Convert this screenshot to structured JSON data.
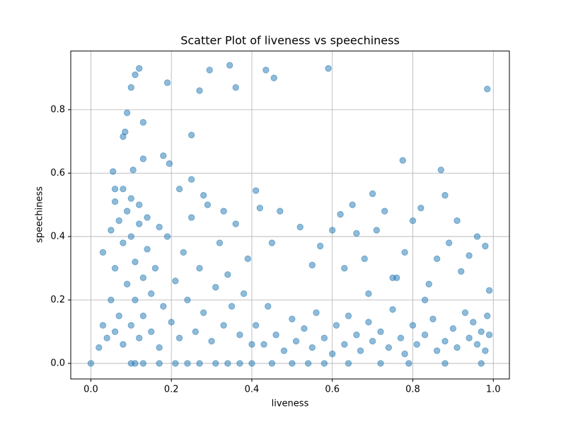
{
  "chart_data": {
    "type": "scatter",
    "title": "Scatter Plot of liveness vs speechiness",
    "x_label": "liveness",
    "y_label": "speechiness",
    "color": "#1f77b4",
    "grid": true,
    "xlim": [
      -0.05,
      1.04
    ],
    "ylim": [
      -0.049,
      0.985
    ],
    "xticks": [
      {
        "value": 0,
        "label": "0.0"
      },
      {
        "value": 0.2,
        "label": "0.2"
      },
      {
        "value": 0.4,
        "label": "0.4"
      },
      {
        "value": 0.6,
        "label": "0.6"
      },
      {
        "value": 0.8,
        "label": "0.8"
      },
      {
        "value": 1.0,
        "label": "1.0"
      }
    ],
    "yticks": [
      {
        "value": 0,
        "label": "0.0"
      },
      {
        "value": 0.2,
        "label": "0.2"
      },
      {
        "value": 0.4,
        "label": "0.4"
      },
      {
        "value": 0.6,
        "label": "0.6"
      },
      {
        "value": 0.8,
        "label": "0.8"
      }
    ],
    "x": [
      0.0,
      0.1,
      0.11,
      0.12,
      0.09,
      0.13,
      0.08,
      0.085,
      0.19,
      0.27,
      0.295,
      0.345,
      0.36,
      0.435,
      0.455,
      0.59,
      0.985,
      0.25,
      0.18,
      0.13,
      0.195,
      0.055,
      0.105,
      0.775,
      0.87,
      0.88,
      0.7,
      0.41,
      0.06,
      0.1,
      0.11,
      0.13,
      0.17,
      0.21,
      0.24,
      0.27,
      0.31,
      0.34,
      0.37,
      0.4,
      0.45,
      0.5,
      0.54,
      0.58,
      0.64,
      0.72,
      0.79,
      0.88,
      0.97,
      0.42,
      0.47,
      0.52,
      0.55,
      0.6,
      0.62,
      0.65,
      0.66,
      0.68,
      0.71,
      0.73,
      0.76,
      0.78,
      0.8,
      0.82,
      0.84,
      0.86,
      0.89,
      0.91,
      0.94,
      0.96,
      0.98,
      0.99,
      0.45,
      0.57,
      0.63,
      0.69,
      0.75,
      0.83,
      0.92,
      0.41,
      0.43,
      0.44,
      0.46,
      0.48,
      0.5,
      0.51,
      0.53,
      0.55,
      0.56,
      0.58,
      0.6,
      0.61,
      0.63,
      0.64,
      0.66,
      0.67,
      0.69,
      0.7,
      0.72,
      0.74,
      0.75,
      0.77,
      0.78,
      0.8,
      0.81,
      0.83,
      0.85,
      0.86,
      0.88,
      0.9,
      0.91,
      0.93,
      0.94,
      0.95,
      0.96,
      0.97,
      0.98,
      0.99,
      0.985,
      0.02,
      0.03,
      0.03,
      0.04,
      0.05,
      0.05,
      0.06,
      0.06,
      0.07,
      0.07,
      0.08,
      0.08,
      0.09,
      0.09,
      0.1,
      0.1,
      0.11,
      0.11,
      0.12,
      0.12,
      0.13,
      0.13,
      0.14,
      0.15,
      0.15,
      0.16,
      0.17,
      0.18,
      0.19,
      0.2,
      0.21,
      0.22,
      0.23,
      0.24,
      0.25,
      0.26,
      0.27,
      0.28,
      0.29,
      0.3,
      0.31,
      0.32,
      0.33,
      0.34,
      0.35,
      0.36,
      0.37,
      0.38,
      0.39,
      0.4,
      0.08,
      0.1,
      0.12,
      0.14,
      0.22,
      0.28,
      0.33,
      0.06,
      0.17,
      0.25
    ],
    "y": [
      0.0,
      0.87,
      0.91,
      0.93,
      0.79,
      0.76,
      0.715,
      0.73,
      0.885,
      0.86,
      0.925,
      0.94,
      0.87,
      0.925,
      0.9,
      0.93,
      0.865,
      0.72,
      0.655,
      0.645,
      0.63,
      0.605,
      0.61,
      0.64,
      0.61,
      0.53,
      0.535,
      0.545,
      0.55,
      0,
      0,
      0,
      0,
      0,
      0,
      0,
      0,
      0,
      0,
      0,
      0,
      0,
      0,
      0,
      0,
      0,
      0,
      0,
      0,
      0.49,
      0.48,
      0.43,
      0.31,
      0.42,
      0.47,
      0.5,
      0.41,
      0.33,
      0.42,
      0.48,
      0.27,
      0.35,
      0.45,
      0.49,
      0.25,
      0.33,
      0.38,
      0.45,
      0.34,
      0.4,
      0.37,
      0.23,
      0.38,
      0.37,
      0.3,
      0.22,
      0.27,
      0.2,
      0.29,
      0.12,
      0.06,
      0.18,
      0.09,
      0.04,
      0.14,
      0.07,
      0.11,
      0.05,
      0.16,
      0.08,
      0.03,
      0.12,
      0.06,
      0.15,
      0.09,
      0.04,
      0.13,
      0.07,
      0.1,
      0.05,
      0.17,
      0.08,
      0.03,
      0.12,
      0.06,
      0.09,
      0.14,
      0.04,
      0.07,
      0.11,
      0.05,
      0.16,
      0.08,
      0.13,
      0.06,
      0.1,
      0.04,
      0.09,
      0.15,
      0.05,
      0.12,
      0.35,
      0.08,
      0.2,
      0.42,
      0.1,
      0.3,
      0.15,
      0.45,
      0.06,
      0.38,
      0.25,
      0.48,
      0.12,
      0.4,
      0.32,
      0.2,
      0.08,
      0.44,
      0.27,
      0.15,
      0.36,
      0.1,
      0.22,
      0.3,
      0.05,
      0.18,
      0.4,
      0.13,
      0.26,
      0.08,
      0.35,
      0.2,
      0.46,
      0.1,
      0.3,
      0.16,
      0.5,
      0.07,
      0.24,
      0.38,
      0.12,
      0.28,
      0.18,
      0.44,
      0.09,
      0.22,
      0.33,
      0.06,
      0.55,
      0.52,
      0.5,
      0.46,
      0.55,
      0.53,
      0.48,
      0.51,
      0.43,
      0.58
    ]
  }
}
